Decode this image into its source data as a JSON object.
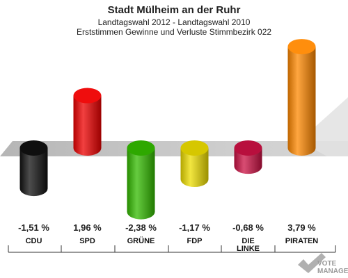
{
  "chart_data": {
    "type": "bar",
    "title": "Stadt Mülheim an der Ruhr",
    "subtitle_1": "Landtagswahl 2012 - Landtagswahl 2010",
    "subtitle_2": "Erststimmen Gewinne und Verluste Stimmbezirk 022",
    "categories": [
      "CDU",
      "SPD",
      "GRÜNE",
      "FDP",
      "DIE LINKE",
      "PIRATEN"
    ],
    "values": [
      -1.51,
      1.96,
      -2.38,
      -1.17,
      -0.68,
      3.79
    ],
    "value_labels": [
      "-1,51 %",
      "1,96 %",
      "-2,38 %",
      "-1,17 %",
      "-0,68 %",
      "3,79 %"
    ],
    "colors": [
      "#111111",
      "#ee0000",
      "#33bb00",
      "#eedd00",
      "#cc1144",
      "#ff8800"
    ],
    "ylim": [
      -2.5,
      4.0
    ],
    "grid": false,
    "legend": "none"
  },
  "logo": {
    "line1": "VOTE",
    "line2": "MANAGER"
  }
}
